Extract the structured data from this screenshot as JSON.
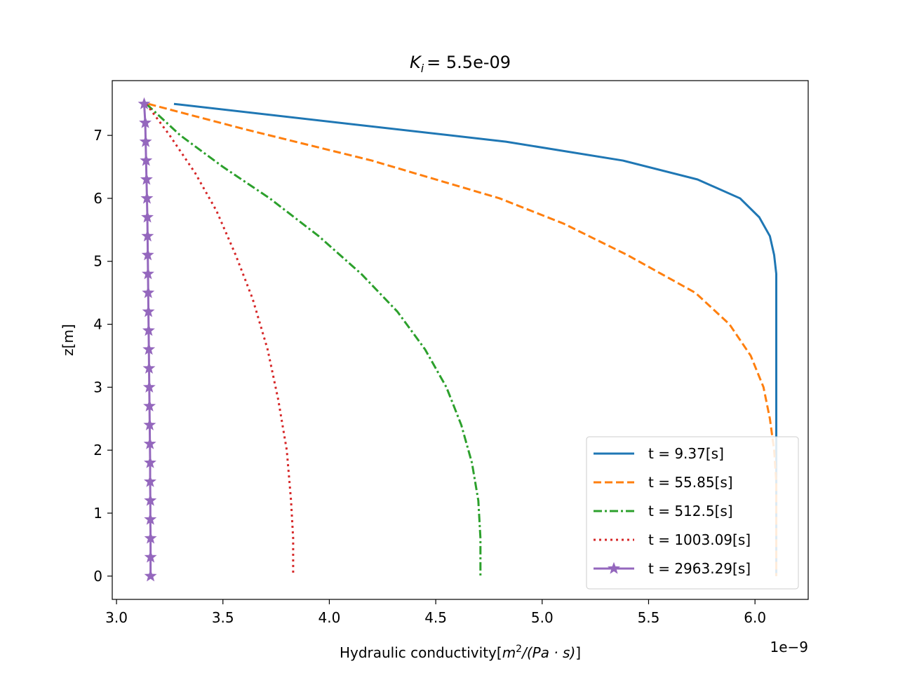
{
  "chart_data": {
    "type": "line",
    "title_var": "K",
    "title_sub": "i",
    "title_value": "=  5.5e-09",
    "xlabel_text": "Hydraulic conductivity[",
    "xlabel_math": "m",
    "xlabel_sup": "2",
    "xlabel_math2": "/(Pa · s)",
    "xlabel_close": "]",
    "ylabel": "z[m]",
    "x_offset_label": "1e−9",
    "xlim": [
      2.98,
      6.25
    ],
    "ylim": [
      -0.37,
      7.87
    ],
    "x_ticks": [
      3.0,
      3.5,
      4.0,
      4.5,
      5.0,
      5.5,
      6.0
    ],
    "x_tick_labels": [
      "3.0",
      "3.5",
      "4.0",
      "4.5",
      "5.0",
      "5.5",
      "6.0"
    ],
    "y_ticks": [
      0,
      1,
      2,
      3,
      4,
      5,
      6,
      7
    ],
    "y_tick_labels": [
      "0",
      "1",
      "2",
      "3",
      "4",
      "5",
      "6",
      "7"
    ],
    "legend_position": "lower right",
    "series": [
      {
        "name": "t = 9.37[s]",
        "color": "#1f77b4",
        "style": "solid",
        "marker": "none",
        "points": [
          [
            3.27,
            7.5
          ],
          [
            4.83,
            6.9
          ],
          [
            5.38,
            6.6
          ],
          [
            5.73,
            6.3
          ],
          [
            5.93,
            6.0
          ],
          [
            6.02,
            5.7
          ],
          [
            6.07,
            5.4
          ],
          [
            6.09,
            5.1
          ],
          [
            6.1,
            4.8
          ],
          [
            6.1,
            4.5
          ],
          [
            6.1,
            4.0
          ],
          [
            6.1,
            3.0
          ],
          [
            6.1,
            2.0
          ],
          [
            6.1,
            1.0
          ],
          [
            6.1,
            0.0
          ]
        ]
      },
      {
        "name": "t = 55.85[s]",
        "color": "#ff7f0e",
        "style": "dashed",
        "marker": "none",
        "points": [
          [
            3.15,
            7.5
          ],
          [
            3.6,
            7.1
          ],
          [
            4.2,
            6.6
          ],
          [
            4.8,
            6.0
          ],
          [
            5.1,
            5.6
          ],
          [
            5.4,
            5.1
          ],
          [
            5.72,
            4.5
          ],
          [
            5.88,
            4.0
          ],
          [
            5.98,
            3.5
          ],
          [
            6.04,
            3.0
          ],
          [
            6.07,
            2.5
          ],
          [
            6.09,
            2.0
          ],
          [
            6.1,
            1.5
          ],
          [
            6.1,
            1.0
          ],
          [
            6.1,
            0.0
          ]
        ]
      },
      {
        "name": "t = 512.5[s]",
        "color": "#2ca02c",
        "style": "dashdot",
        "marker": "none",
        "points": [
          [
            3.14,
            7.5
          ],
          [
            3.3,
            7.0
          ],
          [
            3.5,
            6.5
          ],
          [
            3.72,
            6.0
          ],
          [
            3.95,
            5.4
          ],
          [
            4.15,
            4.8
          ],
          [
            4.32,
            4.2
          ],
          [
            4.45,
            3.6
          ],
          [
            4.55,
            3.0
          ],
          [
            4.62,
            2.4
          ],
          [
            4.67,
            1.8
          ],
          [
            4.7,
            1.2
          ],
          [
            4.71,
            0.6
          ],
          [
            4.71,
            0.0
          ]
        ]
      },
      {
        "name": "t = 1003.09[s]",
        "color": "#d62728",
        "style": "dotted",
        "marker": "none",
        "points": [
          [
            3.14,
            7.5
          ],
          [
            3.25,
            7.0
          ],
          [
            3.37,
            6.4
          ],
          [
            3.47,
            5.8
          ],
          [
            3.56,
            5.1
          ],
          [
            3.64,
            4.4
          ],
          [
            3.71,
            3.6
          ],
          [
            3.76,
            2.8
          ],
          [
            3.8,
            2.0
          ],
          [
            3.82,
            1.2
          ],
          [
            3.83,
            0.6
          ],
          [
            3.83,
            0.0
          ]
        ]
      },
      {
        "name": "t = 2963.29[s]",
        "color": "#9467bd",
        "style": "solid",
        "marker": "star",
        "points": [
          [
            3.13,
            7.5
          ],
          [
            3.135,
            7.2
          ],
          [
            3.137,
            6.9
          ],
          [
            3.139,
            6.6
          ],
          [
            3.141,
            6.3
          ],
          [
            3.143,
            6.0
          ],
          [
            3.145,
            5.7
          ],
          [
            3.146,
            5.4
          ],
          [
            3.147,
            5.1
          ],
          [
            3.148,
            4.8
          ],
          [
            3.149,
            4.5
          ],
          [
            3.15,
            4.2
          ],
          [
            3.151,
            3.9
          ],
          [
            3.152,
            3.6
          ],
          [
            3.153,
            3.3
          ],
          [
            3.154,
            3.0
          ],
          [
            3.155,
            2.7
          ],
          [
            3.156,
            2.4
          ],
          [
            3.157,
            2.1
          ],
          [
            3.158,
            1.8
          ],
          [
            3.158,
            1.5
          ],
          [
            3.159,
            1.2
          ],
          [
            3.159,
            0.9
          ],
          [
            3.16,
            0.6
          ],
          [
            3.16,
            0.3
          ],
          [
            3.16,
            0.0
          ]
        ]
      }
    ]
  }
}
